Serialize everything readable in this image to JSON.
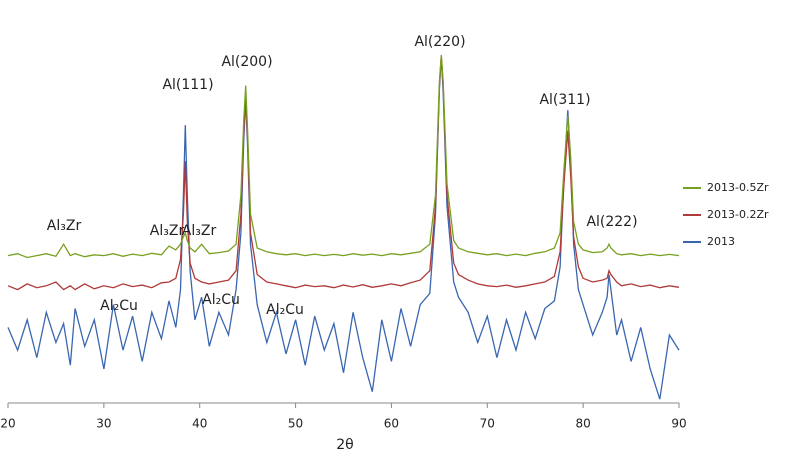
{
  "chart_data": {
    "type": "line",
    "x_label": "2θ",
    "x": [
      20,
      21,
      22,
      23,
      24,
      25,
      25.8,
      26.5,
      27,
      28,
      29,
      30,
      31,
      32,
      33,
      34,
      35,
      36,
      36.8,
      37.5,
      38,
      38.3,
      38.5,
      38.7,
      39,
      39.5,
      40.2,
      41,
      42,
      43,
      43.8,
      44.3,
      44.6,
      44.8,
      45,
      45.3,
      46,
      47,
      48,
      49,
      50,
      51,
      52,
      53,
      54,
      55,
      56,
      57,
      58,
      59,
      60,
      61,
      62,
      63,
      64,
      64.6,
      65,
      65.2,
      65.4,
      65.8,
      66.5,
      67,
      68,
      69,
      70,
      71,
      72,
      73,
      74,
      75,
      76,
      77,
      77.6,
      78,
      78.4,
      78.7,
      79,
      79.5,
      80,
      81,
      82,
      82.5,
      82.7,
      82.9,
      83.5,
      84,
      85,
      86,
      87,
      88,
      89,
      90
    ],
    "series": [
      {
        "name": "2013-0.5Zr",
        "color": "#77a020",
        "values": [
          39,
          39.5,
          38.5,
          39,
          39.5,
          38.8,
          42,
          39,
          39.5,
          38.7,
          39.2,
          39,
          39.5,
          38.8,
          39.4,
          39,
          39.6,
          39.2,
          41.5,
          40.5,
          42,
          44,
          45,
          43,
          41,
          40,
          42,
          39.5,
          39.8,
          40.2,
          42,
          55,
          75,
          84,
          72,
          50,
          41,
          40,
          39.5,
          39.2,
          39.5,
          39,
          39.4,
          39,
          39.3,
          39,
          39.5,
          39.1,
          39.4,
          39,
          39.5,
          39.2,
          39.6,
          40,
          42,
          55,
          85,
          92,
          85,
          58,
          43,
          41,
          40,
          39.6,
          39.2,
          39.5,
          39,
          39.4,
          39,
          39.6,
          40,
          41,
          45,
          62,
          76,
          65,
          48,
          42,
          40.5,
          39.8,
          40,
          41,
          42,
          41,
          39.5,
          39.2,
          39.5,
          39,
          39.4,
          39,
          39.3,
          39
        ]
      },
      {
        "name": "2013-0.2Zr",
        "color": "#b03a3a",
        "values": [
          31,
          30,
          31.5,
          30.5,
          31,
          32,
          30,
          31,
          30,
          31.5,
          30.2,
          31,
          30.5,
          31.5,
          30.8,
          31.2,
          30.5,
          31.8,
          32,
          33,
          38,
          50,
          64,
          48,
          37,
          33,
          32,
          31.5,
          32,
          32.5,
          35,
          50,
          72,
          81.5,
          70,
          45,
          34,
          32,
          31.5,
          31,
          30.5,
          31.2,
          30.8,
          31,
          30.5,
          31.2,
          30.7,
          31.3,
          30.6,
          31,
          31.5,
          31,
          31.8,
          32.5,
          35,
          52,
          84,
          92,
          84,
          55,
          37,
          34,
          32.5,
          31.5,
          31,
          30.8,
          31.2,
          30.6,
          31,
          31.5,
          32,
          33.5,
          40,
          58,
          72,
          60,
          44,
          36,
          33,
          32,
          32.5,
          33,
          35,
          34,
          32,
          31,
          31.5,
          30.8,
          31.2,
          30.5,
          31,
          30.6
        ]
      },
      {
        "name": "2013",
        "color": "#3a66b0",
        "values": [
          20,
          14,
          22,
          12,
          24,
          16,
          21,
          10,
          25,
          15,
          22,
          9,
          26,
          14,
          23,
          11,
          24,
          17,
          27,
          20,
          30,
          55,
          73.5,
          55,
          35,
          22,
          28,
          15,
          24,
          18,
          30,
          45,
          70,
          80,
          68,
          42,
          26,
          16,
          24,
          13,
          22,
          10,
          23,
          14,
          21,
          8,
          24,
          12,
          3,
          22,
          11,
          25,
          15,
          26,
          29,
          50,
          83,
          91.5,
          82,
          52,
          32,
          28,
          24,
          16,
          23,
          12,
          22,
          14,
          24,
          17,
          25,
          27,
          36,
          60,
          77.5,
          64,
          42,
          30,
          26,
          18,
          24,
          28,
          34,
          30,
          18,
          22,
          11,
          20,
          9,
          1,
          18,
          14
        ]
      }
    ],
    "xlim": [
      20,
      90
    ],
    "xticks": [
      20,
      30,
      40,
      50,
      60,
      70,
      80,
      90
    ],
    "ylim": [
      0,
      100
    ],
    "annotations": [
      "Al(111)",
      "Al(200)",
      "Al(220)",
      "Al(311)",
      "Al(222)",
      "Al₃Zr",
      "Al₃Zr",
      "Al₃Zr",
      "Al₂Cu",
      "Al₂Cu",
      "Al₂Cu"
    ]
  }
}
